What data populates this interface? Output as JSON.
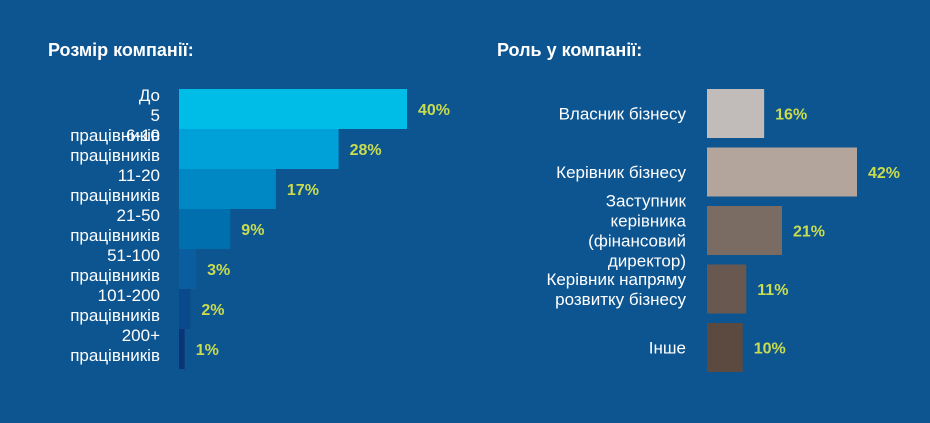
{
  "chart_data": [
    {
      "type": "bar",
      "orientation": "horizontal",
      "title": "Розмір компанії:",
      "unit": "%",
      "categories": [
        "До 5 працівників",
        "6-10 працівників",
        "11-20 працівників",
        "21-50 працівників",
        "51-100 працівників",
        "101-200 працівників",
        "200+ працівників"
      ],
      "values": [
        40,
        28,
        17,
        9,
        3,
        2,
        1
      ],
      "value_labels": [
        "40%",
        "28%",
        "17%",
        "9%",
        "3%",
        "2%",
        "1%"
      ],
      "colors": [
        "#00bde8",
        "#00a0d8",
        "#0088c4",
        "#006fae",
        "#0a5e9f",
        "#0a4a8c",
        "#0a3475"
      ]
    },
    {
      "type": "bar",
      "orientation": "horizontal",
      "title": "Роль у компанії:",
      "unit": "%",
      "categories": [
        "Власник бізнесу",
        "Керівник бізнесу",
        "Заступник керівника (фінансовий директор)",
        "Керівник напряму розвитку бізнесу",
        "Інше"
      ],
      "values": [
        16,
        42,
        21,
        11,
        10
      ],
      "value_labels": [
        "16%",
        "42%",
        "21%",
        "11%",
        "10%"
      ],
      "colors": [
        "#c1bcba",
        "#b3a59b",
        "#7a6b63",
        "#685850",
        "#5c4a40"
      ]
    }
  ]
}
